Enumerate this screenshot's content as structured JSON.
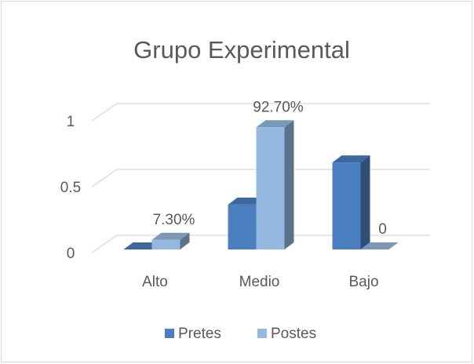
{
  "chart_data": {
    "type": "bar3d",
    "title": "Grupo Experimental",
    "categories": [
      "Alto",
      "Medio",
      "Bajo"
    ],
    "series": [
      {
        "name": "Pretes",
        "color": "#4a7fc0",
        "values": [
          0,
          0.34,
          0.66
        ]
      },
      {
        "name": "Postes",
        "color": "#95b8e0",
        "values": [
          0.073,
          0.927,
          0
        ],
        "value_labels": [
          "7.30%",
          "92.70%",
          "0"
        ]
      }
    ],
    "ylim": [
      0,
      1
    ],
    "yticks": [
      0,
      0.5,
      1
    ],
    "grid": true,
    "legend": "bottom"
  }
}
